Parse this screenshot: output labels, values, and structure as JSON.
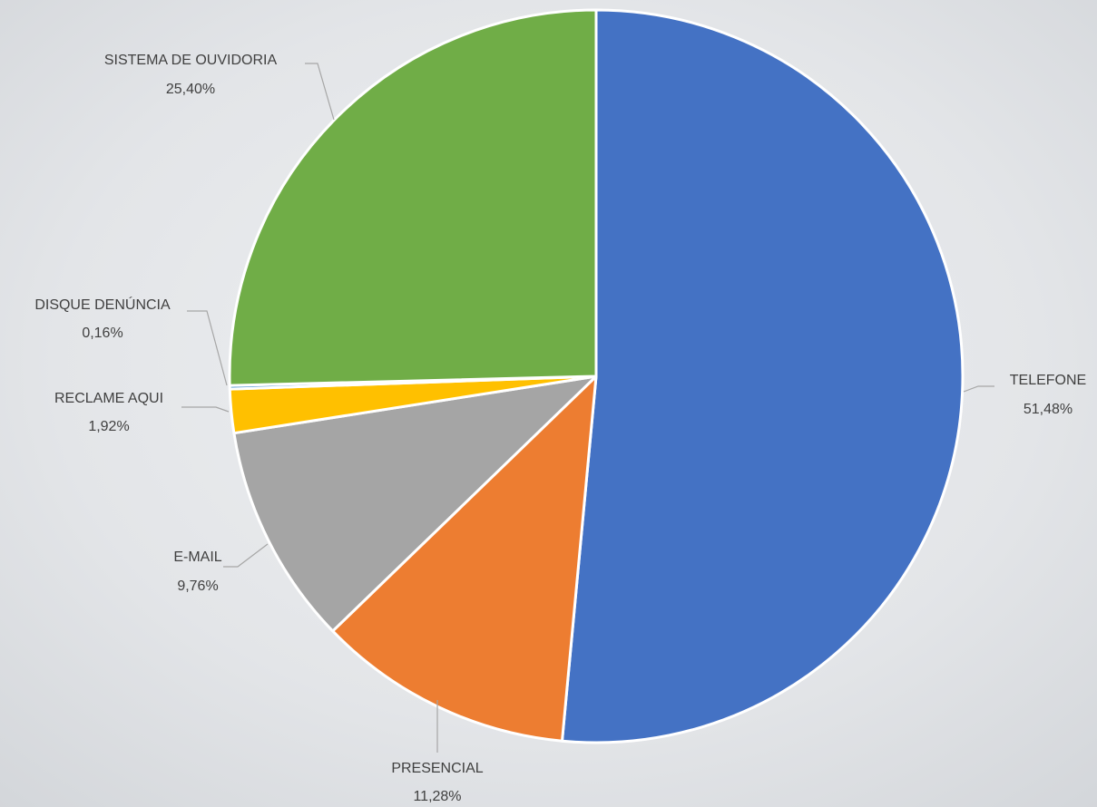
{
  "chart_data": {
    "type": "pie",
    "categories": [
      "TELEFONE",
      "PRESENCIAL",
      "E-MAIL",
      "RECLAME AQUI",
      "DISQUE DENÚNCIA",
      "SISTEMA DE OUVIDORIA"
    ],
    "values": [
      51.48,
      11.28,
      9.76,
      1.92,
      0.16,
      25.4
    ],
    "value_labels": [
      "51,48%",
      "11,28%",
      "9,76%",
      "1,92%",
      "0,16%",
      "25,40%"
    ],
    "colors": [
      "#4472c4",
      "#ed7d31",
      "#a5a5a5",
      "#ffc000",
      "#5b9bd5",
      "#70ad47"
    ]
  }
}
